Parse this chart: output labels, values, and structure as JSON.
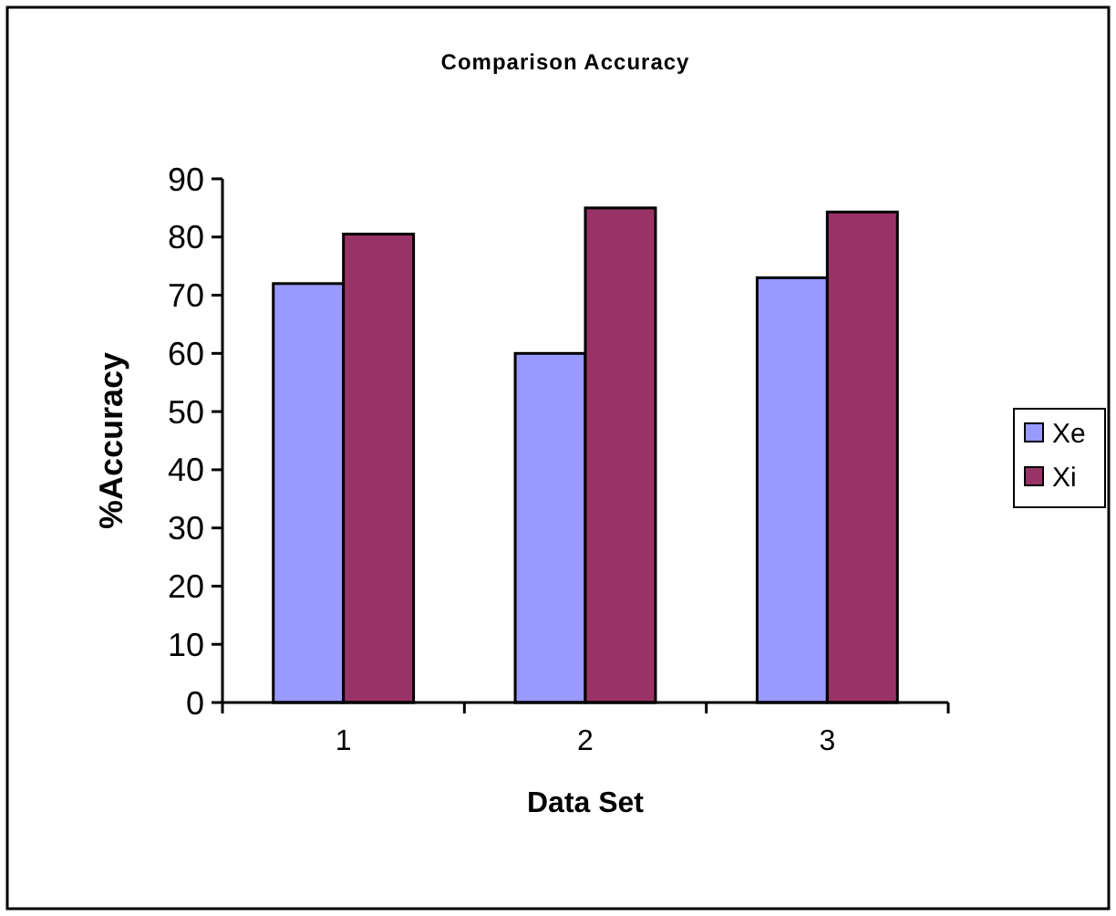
{
  "chart_data": {
    "type": "bar",
    "title": "Comparison Accuracy",
    "xlabel": "Data Set",
    "ylabel": "%Accuracy",
    "categories": [
      "1",
      "2",
      "3"
    ],
    "series": [
      {
        "name": "Xe",
        "color": "#9999ff",
        "values": [
          72,
          60,
          73
        ]
      },
      {
        "name": "Xi",
        "color": "#993366",
        "values": [
          80.5,
          85,
          84.3
        ]
      }
    ],
    "ylim": [
      0,
      90
    ],
    "yticks": [
      0,
      10,
      20,
      30,
      40,
      50,
      60,
      70,
      80,
      90
    ],
    "grid": false,
    "legend": "right"
  }
}
